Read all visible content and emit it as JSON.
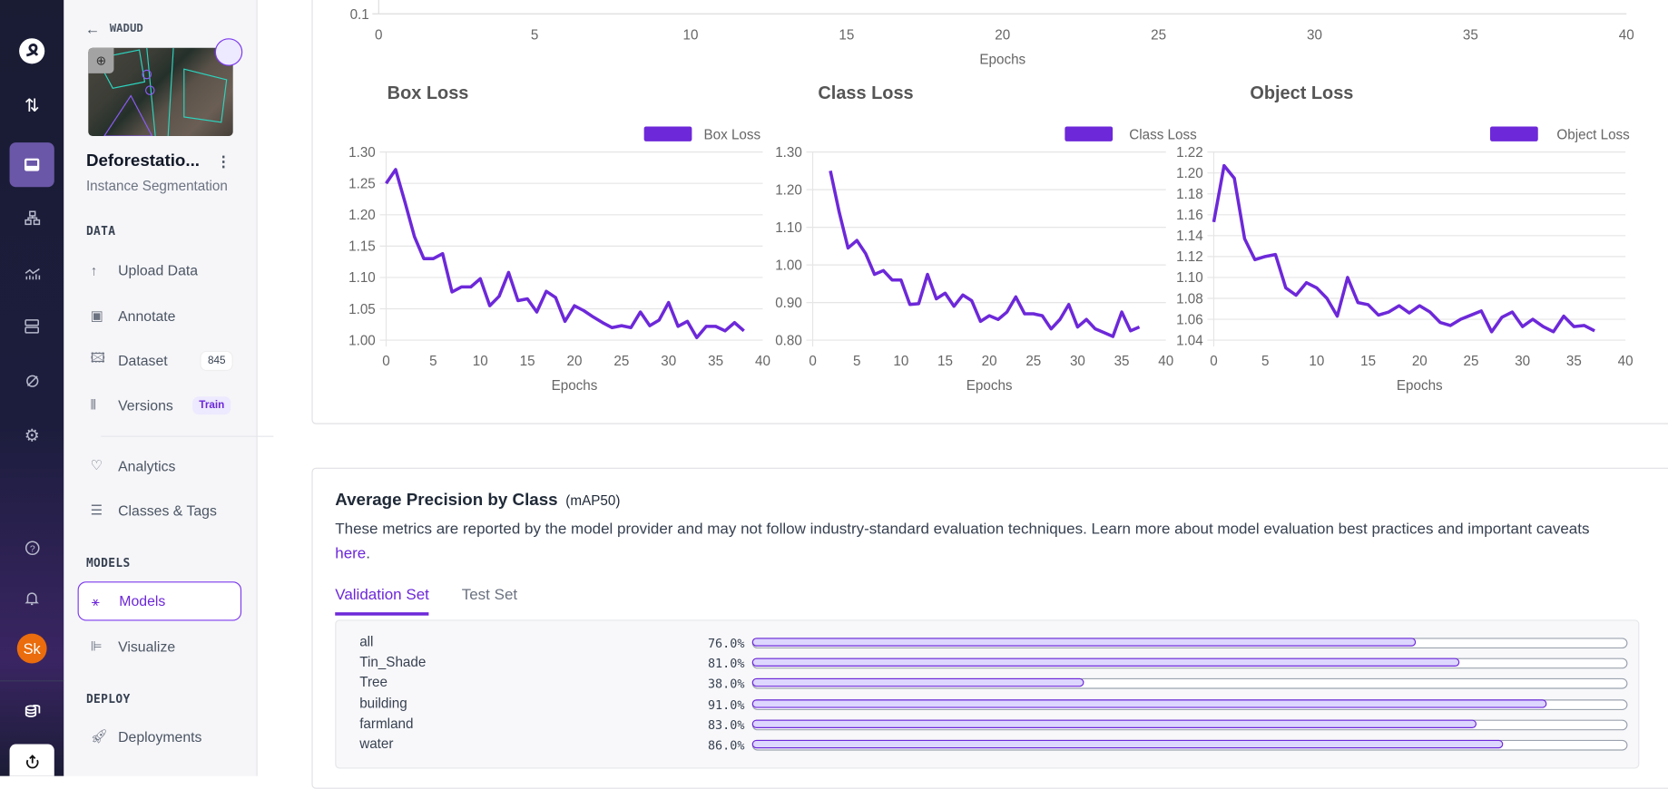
{
  "rail": {
    "icons": [
      "roboflow-logo-icon",
      "sort-arrows-icon",
      "inbox-icon",
      "workflow-icon",
      "analytics-chart-icon",
      "server-icon",
      "compass-icon",
      "gear-icon",
      "help-icon",
      "bell-icon",
      "database-stack-icon",
      "upload-icon"
    ],
    "avatar": "Sk",
    "avatar_color": "#ea6c0c"
  },
  "sidebar": {
    "workspace": "WADUD",
    "project_name": "Deforestatio...",
    "project_type": "Instance Segmentation",
    "sections": {
      "data": "DATA",
      "models": "MODELS",
      "deploy": "DEPLOY"
    },
    "items": [
      {
        "label": "Upload Data",
        "icon": "upload-arrow-icon"
      },
      {
        "label": "Annotate",
        "icon": "annotate-icon"
      },
      {
        "label": "Dataset",
        "icon": "image-icon",
        "badge": "845"
      },
      {
        "label": "Versions",
        "icon": "versions-icon",
        "badge": "Train"
      },
      {
        "label": "Analytics",
        "icon": "heart-pulse-icon"
      },
      {
        "label": "Classes & Tags",
        "icon": "list-numbered-icon"
      },
      {
        "label": "Models",
        "icon": "models-network-icon",
        "active": true
      },
      {
        "label": "Visualize",
        "icon": "bar-chart-icon"
      },
      {
        "label": "Deployments",
        "icon": "rocket-icon"
      }
    ]
  },
  "accent": "#6d28d9",
  "top_chart": {
    "ytick": "0.1",
    "xticks": [
      "0",
      "5",
      "10",
      "15",
      "20",
      "25",
      "30",
      "35",
      "40"
    ],
    "xlabel": "Epochs"
  },
  "chart_data": [
    {
      "type": "line",
      "title": "Box Loss",
      "xlabel": "Epochs",
      "legend": "top-right",
      "xlim": [
        0,
        40
      ],
      "ylim": [
        1.0,
        1.3
      ],
      "yticks": [
        "1.00",
        "1.05",
        "1.10",
        "1.15",
        "1.20",
        "1.25",
        "1.30"
      ],
      "xticks": [
        "0",
        "5",
        "10",
        "15",
        "20",
        "25",
        "30",
        "35",
        "40"
      ],
      "series": [
        {
          "name": "Box Loss",
          "color": "#6d28d9",
          "x0": 0,
          "values": [
            1.25,
            1.272,
            1.22,
            1.165,
            1.13,
            1.13,
            1.138,
            1.077,
            1.085,
            1.085,
            1.098,
            1.055,
            1.07,
            1.108,
            1.063,
            1.066,
            1.045,
            1.078,
            1.068,
            1.03,
            1.055,
            1.047,
            1.037,
            1.028,
            1.02,
            1.023,
            1.02,
            1.045,
            1.023,
            1.032,
            1.06,
            1.022,
            1.03,
            1.004,
            1.022,
            1.022,
            1.015,
            1.028,
            1.015
          ]
        }
      ]
    },
    {
      "type": "line",
      "title": "Class Loss",
      "xlabel": "Epochs",
      "legend": "top-right",
      "xlim": [
        0,
        40
      ],
      "ylim": [
        0.8,
        1.3
      ],
      "yticks": [
        "0.80",
        "0.90",
        "1.00",
        "1.10",
        "1.20",
        "1.30"
      ],
      "xticks": [
        "0",
        "5",
        "10",
        "15",
        "20",
        "25",
        "30",
        "35",
        "40"
      ],
      "series": [
        {
          "name": "Class Loss",
          "color": "#6d28d9",
          "x0": 2,
          "values": [
            1.25,
            1.14,
            1.045,
            1.065,
            1.03,
            0.975,
            0.985,
            0.96,
            0.96,
            0.895,
            0.897,
            0.975,
            0.91,
            0.925,
            0.89,
            0.92,
            0.905,
            0.85,
            0.865,
            0.855,
            0.875,
            0.915,
            0.87,
            0.87,
            0.865,
            0.83,
            0.855,
            0.895,
            0.835,
            0.855,
            0.83,
            0.82,
            0.81,
            0.875,
            0.825,
            0.835
          ]
        }
      ]
    },
    {
      "type": "line",
      "title": "Object Loss",
      "xlabel": "Epochs",
      "legend": "top-right",
      "xlim": [
        0,
        40
      ],
      "ylim": [
        1.04,
        1.22
      ],
      "yticks": [
        "1.04",
        "1.06",
        "1.08",
        "1.10",
        "1.12",
        "1.14",
        "1.16",
        "1.18",
        "1.20",
        "1.22"
      ],
      "xticks": [
        "0",
        "5",
        "10",
        "15",
        "20",
        "25",
        "30",
        "35",
        "40"
      ],
      "series": [
        {
          "name": "Object Loss",
          "color": "#6d28d9",
          "x0": 0,
          "values": [
            1.153,
            1.207,
            1.195,
            1.137,
            1.117,
            1.12,
            1.122,
            1.09,
            1.083,
            1.095,
            1.09,
            1.08,
            1.063,
            1.1,
            1.076,
            1.074,
            1.064,
            1.067,
            1.073,
            1.066,
            1.073,
            1.067,
            1.057,
            1.054,
            1.06,
            1.064,
            1.068,
            1.048,
            1.062,
            1.067,
            1.053,
            1.06,
            1.053,
            1.048,
            1.063,
            1.053,
            1.054,
            1.049
          ]
        }
      ]
    }
  ],
  "ap": {
    "title": "Average Precision by Class",
    "subtitle": "(mAP50)",
    "description": "These metrics are reported by the model provider and may not follow industry-standard evaluation techniques. Learn more about model evaluation best practices and important caveats ",
    "link": "here",
    "period": ".",
    "tabs": [
      {
        "label": "Validation Set",
        "active": true
      },
      {
        "label": "Test Set"
      }
    ],
    "rows": [
      {
        "label": "all",
        "value": "76.0%",
        "pct": 76
      },
      {
        "label": "Tin_Shade",
        "value": "81.0%",
        "pct": 81
      },
      {
        "label": "Tree",
        "value": "38.0%",
        "pct": 38
      },
      {
        "label": "building",
        "value": "91.0%",
        "pct": 91
      },
      {
        "label": "farmland",
        "value": "83.0%",
        "pct": 83
      },
      {
        "label": "water",
        "value": "86.0%",
        "pct": 86
      }
    ]
  }
}
